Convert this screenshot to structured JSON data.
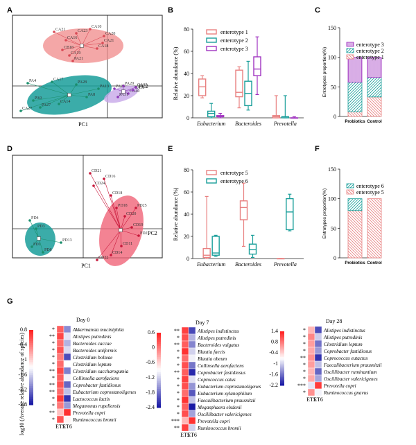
{
  "panels": {
    "A": "A",
    "B": "B",
    "C": "C",
    "D": "D",
    "E": "E",
    "F": "F",
    "G": "G"
  },
  "colors": {
    "red": "#e88080",
    "teal": "#199e9a",
    "purple": "#a033c0",
    "salmon": "#f4a8a8",
    "pink": "#f0607a",
    "green": "#1f9d68"
  },
  "chart_data": [
    {
      "id": "A",
      "type": "scatter",
      "xlabel": "PC1",
      "ylabel": "PC2",
      "groups": [
        {
          "color": "#e88080",
          "labels": [
            "CA21",
            "CA16",
            "CB18",
            "CA19",
            "CA23",
            "CA10",
            "CA20",
            "CA21",
            "CA18",
            "PA21"
          ]
        },
        {
          "color": "#199e9a",
          "labels": [
            "PA4",
            "PA9",
            "CA27",
            "PA27",
            "CA17",
            "PA28",
            "PA8",
            "PA13",
            "CA14"
          ]
        },
        {
          "color": "#a033c0",
          "labels": [
            "PA25",
            "PA20",
            "CA40",
            "CA38",
            "PA31",
            "CA32"
          ]
        }
      ]
    },
    {
      "id": "B",
      "type": "box",
      "ylabel": "Relative abundance (%)",
      "ylim": [
        0,
        80
      ],
      "yticks": [
        "0",
        "20",
        "40",
        "60",
        "80"
      ],
      "categories": [
        "Eubacterium",
        "Bacteroides",
        "Prevotella"
      ],
      "series": [
        {
          "name": "enterotype 1",
          "color": "#e88080",
          "boxes": [
            [
              18,
              20,
              28,
              35,
              38
            ],
            [
              9,
              19,
              23,
              43,
              46
            ],
            [
              0,
              0,
              1,
              2,
              20
            ]
          ]
        },
        {
          "name": "enterotype 2",
          "color": "#199e9a",
          "boxes": [
            [
              0,
              1,
              4,
              6,
              13
            ],
            [
              7,
              11,
              22,
              33,
              51
            ],
            [
              0,
              0,
              1,
              1,
              20
            ]
          ]
        },
        {
          "name": "enterotype 3",
          "color": "#a033c0",
          "boxes": [
            [
              0,
              1,
              1,
              2,
              4
            ],
            [
              21,
              38,
              44,
              55,
              73
            ],
            [
              0,
              0,
              0,
              0,
              1
            ]
          ]
        }
      ]
    },
    {
      "id": "C",
      "type": "bar",
      "ylabel": "Entrotypes proportion(%)",
      "ylim": [
        0,
        150
      ],
      "yticks": [
        "0",
        "50",
        "100",
        "150"
      ],
      "categories": [
        "Probiotics",
        "Control"
      ],
      "series": [
        {
          "name": "enterotype 1",
          "color": "#e88080",
          "values": [
            8,
            33
          ]
        },
        {
          "name": "enterotype 2",
          "color": "#199e9a",
          "values": [
            50,
            33
          ]
        },
        {
          "name": "enterotype 3",
          "color": "#a033c0",
          "values": [
            42,
            34
          ]
        }
      ]
    },
    {
      "id": "D",
      "type": "scatter",
      "xlabel": "PC1",
      "ylabel": "PC2",
      "groups": [
        {
          "color": "#199e9a",
          "labels": [
            "PD4",
            "PD3",
            "PD1",
            "PD8",
            "PD13"
          ]
        },
        {
          "color": "#e8304f",
          "labels": [
            "CD21",
            "CD16",
            "CD24",
            "CD18",
            "PD18",
            "CD20",
            "CD19",
            "PD21",
            "CD11",
            "CD14",
            "CD22",
            "PD25"
          ]
        }
      ]
    },
    {
      "id": "E",
      "type": "box",
      "ylabel": "Relative abundance (%)",
      "ylim": [
        0,
        80
      ],
      "yticks": [
        "0",
        "20",
        "40",
        "60",
        "80"
      ],
      "categories": [
        "Eubacterium",
        "Bacteroides",
        "Prevotella"
      ],
      "series": [
        {
          "name": "enterotype 5",
          "color": "#e88080",
          "boxes": [
            [
              0,
              1,
              3,
              9,
              56
            ],
            [
              11,
              35,
              46,
              52,
              68
            ],
            [
              0,
              0,
              0,
              0,
              0
            ]
          ]
        },
        {
          "name": "enterotype 6",
          "color": "#199e9a",
          "boxes": [
            [
              2,
              3,
              5,
              20,
              21
            ],
            [
              1,
              4,
              8,
              13,
              21
            ],
            [
              25,
              26,
              42,
              54,
              58
            ]
          ]
        }
      ]
    },
    {
      "id": "F",
      "type": "bar",
      "ylabel": "Entrotypes proportion(%)",
      "ylim": [
        0,
        150
      ],
      "yticks": [
        "0",
        "50",
        "100",
        "150"
      ],
      "categories": [
        "Probiotics",
        "Control"
      ],
      "series": [
        {
          "name": "enterotype 5",
          "color": "#e88080",
          "values": [
            80,
            100
          ]
        },
        {
          "name": "enterotype 6",
          "color": "#199e9a",
          "values": [
            20,
            0
          ]
        }
      ]
    },
    {
      "id": "G",
      "type": "heatmap",
      "ylabel": "log10 (Average relative abundance of species)",
      "columns": [
        "ET5",
        "ET6"
      ],
      "maps": [
        {
          "title": "Day 0",
          "scale_ticks": [
            "0.8",
            "-0.4",
            "-1",
            "-1.6",
            "-2.2",
            "-2.8"
          ],
          "vmin": -2.8,
          "vmax": 0.8,
          "rows": [
            "Akkermansia muciniphila",
            "Alistipes putredinis",
            "Bacteroides caccae",
            "Bacteroides uniformis",
            "Clostridium bolteae",
            "Clostridium leptum",
            "Clostridium saccharogumia",
            "Collinsella aerofaciens",
            "Coprobacter fastidiosus",
            "Eubacterium coprostanoligenes",
            "Lactococcus lactis",
            "Megamonas rupellensis",
            "Prevotella copri",
            "Ruminococcus bromii"
          ],
          "sig": [
            "*",
            "**",
            "*",
            "*",
            "*",
            "*",
            "**",
            "*",
            "**",
            "**",
            "*",
            "*",
            "**",
            "*"
          ],
          "values": [
            [
              0.3,
              -1.9
            ],
            [
              0.5,
              -1.2
            ],
            [
              0.2,
              -1.6
            ],
            [
              0.4,
              -1.3
            ],
            [
              0.1,
              -2.4
            ],
            [
              0.2,
              -1.0
            ],
            [
              0.5,
              -2.0
            ],
            [
              0.3,
              -1.1
            ],
            [
              0.4,
              -2.2
            ],
            [
              0.2,
              -1.5
            ],
            [
              0.6,
              -2.6
            ],
            [
              0.1,
              -1.8
            ],
            [
              -0.5,
              0.7
            ],
            [
              0.4,
              -0.9
            ]
          ]
        },
        {
          "title": "Day 7",
          "scale_ticks": [
            "0.6",
            "0",
            "-0.6",
            "-1.2",
            "-1.8",
            "-2.4"
          ],
          "vmin": -2.4,
          "vmax": 0.6,
          "rows": [
            "Alistipes indistinctus",
            "Alistipes putredinis",
            "Bacteroides vulgatus",
            "Blautia faecis",
            "Blautia obeum",
            "Collinsella aerofaciens",
            "Coprobacter fastidiosus",
            "Coprococcus catus",
            "Eubacterium coprostanoligenes",
            "Eubacterium xylanophilum",
            "Faecalibacterium prausnitzii",
            "Megasphaera elsdenii",
            "Oscillibacter valericigenes",
            "Prevotella copri",
            "Ruminococcus bromii"
          ],
          "sig": [
            "**",
            "*",
            "**",
            "*",
            "*",
            "*",
            "**",
            "*",
            "*",
            "*",
            "*",
            "*",
            "*",
            "***",
            "**"
          ],
          "values": [
            [
              0.4,
              -2.1
            ],
            [
              0.3,
              -1.4
            ],
            [
              0.2,
              -1.7
            ],
            [
              0.5,
              -1.2
            ],
            [
              0.1,
              -1.0
            ],
            [
              0.3,
              -1.8
            ],
            [
              0.2,
              -2.3
            ],
            [
              0.4,
              -1.1
            ],
            [
              0.3,
              -1.6
            ],
            [
              0.1,
              -2.0
            ],
            [
              0.5,
              -1.3
            ],
            [
              0.2,
              -2.4
            ],
            [
              0.3,
              -1.5
            ],
            [
              -0.4,
              0.5
            ],
            [
              0.4,
              -1.2
            ]
          ]
        },
        {
          "title": "Day 28",
          "scale_ticks": [
            "1.4",
            "0.8",
            "-0.4",
            "-1",
            "-1.6",
            "-2.2"
          ],
          "vmin": -2.2,
          "vmax": 1.4,
          "rows": [
            "Alistipes indistinctus",
            "Alistipes putredinis",
            "Clostridium leptum",
            "Coprobacter fastidiosus",
            "Coprococcus eutactus",
            "Faecalibacterium prausnitzii",
            "Oscillibacter ruminantium",
            "Oscillibacter valericigenes",
            "Prevotella copri",
            "Ruminococcus gnavus"
          ],
          "sig": [
            "*",
            "*",
            "*",
            "*",
            "**",
            "*",
            "*",
            "*",
            "***",
            "*"
          ],
          "values": [
            [
              0.2,
              -1.8
            ],
            [
              0.6,
              -0.8
            ],
            [
              0.4,
              -1.5
            ],
            [
              0.3,
              -1.2
            ],
            [
              0.5,
              -2.0
            ],
            [
              0.4,
              -0.9
            ],
            [
              0.2,
              -1.6
            ],
            [
              0.3,
              -1.1
            ],
            [
              -0.6,
              1.2
            ],
            [
              0.5,
              -0.5
            ]
          ]
        }
      ]
    }
  ]
}
